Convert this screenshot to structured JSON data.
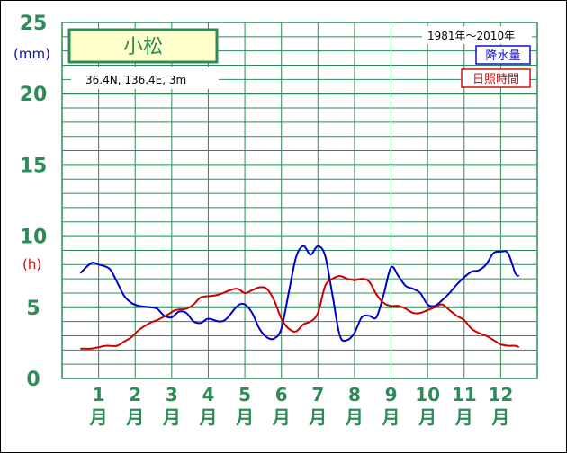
{
  "chart_data": {
    "type": "line",
    "title": "小松",
    "location": "36.4N,  136.4E,  3m",
    "period": "1981年〜2010年",
    "precip_unit": "(mm)",
    "sunshine_unit": "(h)",
    "y_ticks": [
      "0",
      "5",
      "10",
      "15",
      "20",
      "25"
    ],
    "ylim": [
      0,
      25
    ],
    "months": [
      "1",
      "2",
      "3",
      "4",
      "5",
      "6",
      "7",
      "8",
      "9",
      "10",
      "11",
      "12"
    ],
    "month_suffix": "月",
    "colors": {
      "grid": "#2e8b57",
      "precip": "#0000cc",
      "sunshine": "#cc0000"
    },
    "series": [
      {
        "name": "降水量",
        "color": "#0000cc",
        "points": [
          [
            0.5,
            7.4
          ],
          [
            0.8,
            8.1
          ],
          [
            1.0,
            8.0
          ],
          [
            1.3,
            7.7
          ],
          [
            1.5,
            6.8
          ],
          [
            1.7,
            5.8
          ],
          [
            1.9,
            5.3
          ],
          [
            2.1,
            5.1
          ],
          [
            2.4,
            5.0
          ],
          [
            2.6,
            4.9
          ],
          [
            2.8,
            4.4
          ],
          [
            3.0,
            4.3
          ],
          [
            3.2,
            4.7
          ],
          [
            3.4,
            4.6
          ],
          [
            3.6,
            4.0
          ],
          [
            3.8,
            3.9
          ],
          [
            4.0,
            4.2
          ],
          [
            4.3,
            4.0
          ],
          [
            4.5,
            4.2
          ],
          [
            4.8,
            5.1
          ],
          [
            5.0,
            5.2
          ],
          [
            5.2,
            4.6
          ],
          [
            5.4,
            3.5
          ],
          [
            5.6,
            2.9
          ],
          [
            5.8,
            2.8
          ],
          [
            6.0,
            3.5
          ],
          [
            6.2,
            6.0
          ],
          [
            6.4,
            8.5
          ],
          [
            6.6,
            9.3
          ],
          [
            6.8,
            8.7
          ],
          [
            7.0,
            9.3
          ],
          [
            7.2,
            8.6
          ],
          [
            7.4,
            5.8
          ],
          [
            7.6,
            3.0
          ],
          [
            7.8,
            2.7
          ],
          [
            8.0,
            3.2
          ],
          [
            8.2,
            4.3
          ],
          [
            8.4,
            4.4
          ],
          [
            8.6,
            4.3
          ],
          [
            8.8,
            5.9
          ],
          [
            9.0,
            7.8
          ],
          [
            9.2,
            7.2
          ],
          [
            9.4,
            6.5
          ],
          [
            9.6,
            6.3
          ],
          [
            9.8,
            6.0
          ],
          [
            10.0,
            5.2
          ],
          [
            10.2,
            5.1
          ],
          [
            10.4,
            5.5
          ],
          [
            10.6,
            6.0
          ],
          [
            10.8,
            6.6
          ],
          [
            11.0,
            7.1
          ],
          [
            11.2,
            7.5
          ],
          [
            11.4,
            7.6
          ],
          [
            11.6,
            8.0
          ],
          [
            11.8,
            8.8
          ],
          [
            12.0,
            8.9
          ],
          [
            12.2,
            8.8
          ],
          [
            12.4,
            7.4
          ],
          [
            12.5,
            7.2
          ]
        ]
      },
      {
        "name": "日照時間",
        "color": "#cc0000",
        "points": [
          [
            0.5,
            2.1
          ],
          [
            0.8,
            2.1
          ],
          [
            1.0,
            2.2
          ],
          [
            1.2,
            2.3
          ],
          [
            1.5,
            2.3
          ],
          [
            1.7,
            2.6
          ],
          [
            1.9,
            2.9
          ],
          [
            2.1,
            3.4
          ],
          [
            2.4,
            3.9
          ],
          [
            2.6,
            4.1
          ],
          [
            2.9,
            4.5
          ],
          [
            3.1,
            4.8
          ],
          [
            3.4,
            4.9
          ],
          [
            3.6,
            5.2
          ],
          [
            3.8,
            5.7
          ],
          [
            4.1,
            5.8
          ],
          [
            4.3,
            5.9
          ],
          [
            4.6,
            6.2
          ],
          [
            4.8,
            6.3
          ],
          [
            5.0,
            6.0
          ],
          [
            5.2,
            6.2
          ],
          [
            5.4,
            6.4
          ],
          [
            5.6,
            6.3
          ],
          [
            5.8,
            5.5
          ],
          [
            6.0,
            4.2
          ],
          [
            6.2,
            3.5
          ],
          [
            6.4,
            3.3
          ],
          [
            6.6,
            3.8
          ],
          [
            6.8,
            4.0
          ],
          [
            7.0,
            4.6
          ],
          [
            7.2,
            6.5
          ],
          [
            7.4,
            7.0
          ],
          [
            7.6,
            7.2
          ],
          [
            7.8,
            7.0
          ],
          [
            8.0,
            6.9
          ],
          [
            8.2,
            7.0
          ],
          [
            8.4,
            6.8
          ],
          [
            8.6,
            5.9
          ],
          [
            8.8,
            5.3
          ],
          [
            9.0,
            5.1
          ],
          [
            9.2,
            5.1
          ],
          [
            9.4,
            4.9
          ],
          [
            9.6,
            4.6
          ],
          [
            9.8,
            4.6
          ],
          [
            10.0,
            4.8
          ],
          [
            10.2,
            5.0
          ],
          [
            10.4,
            5.2
          ],
          [
            10.6,
            4.8
          ],
          [
            10.8,
            4.4
          ],
          [
            11.0,
            4.1
          ],
          [
            11.2,
            3.5
          ],
          [
            11.4,
            3.2
          ],
          [
            11.6,
            3.0
          ],
          [
            11.8,
            2.7
          ],
          [
            12.0,
            2.4
          ],
          [
            12.2,
            2.3
          ],
          [
            12.4,
            2.3
          ],
          [
            12.5,
            2.2
          ]
        ]
      }
    ]
  }
}
